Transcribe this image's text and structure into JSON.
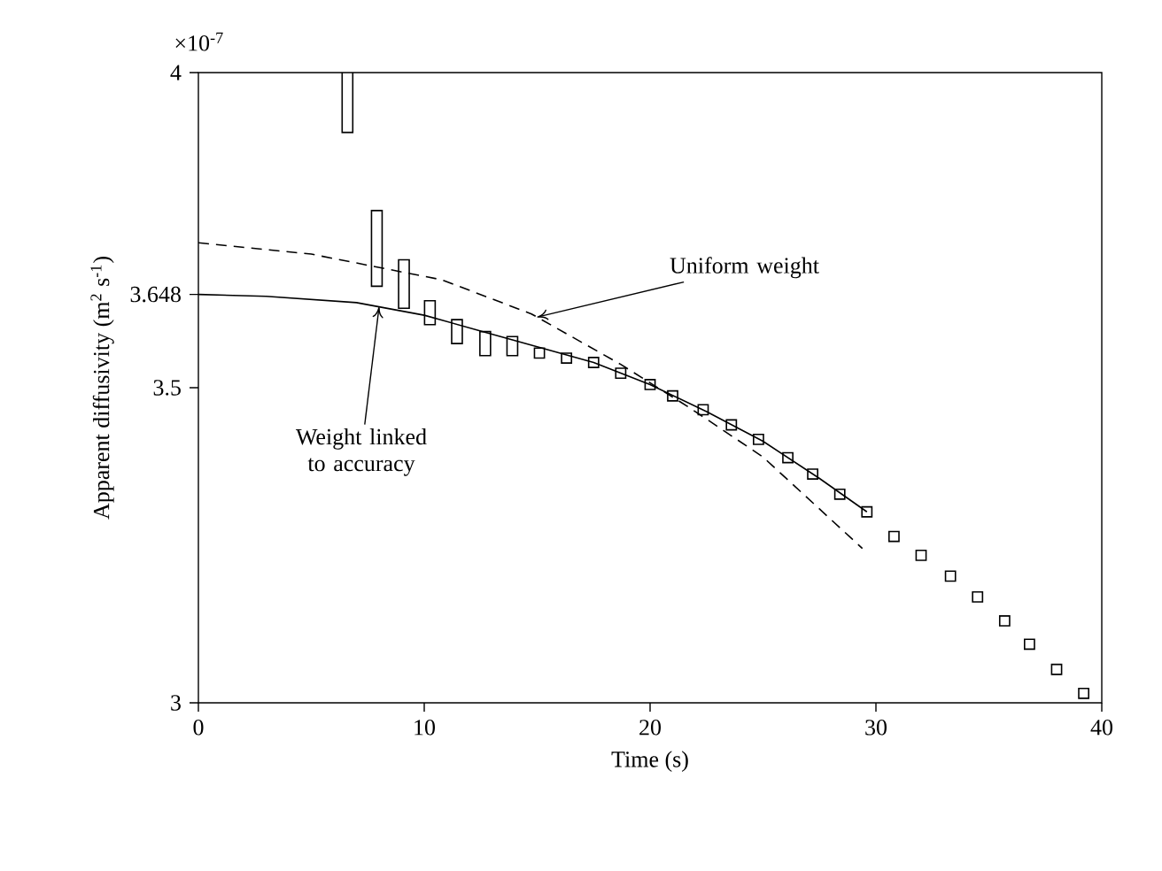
{
  "chart_data": {
    "type": "scatter",
    "xlabel": "Time (s)",
    "ylabel": "Apparent diffusivity (m$^{2}$ s$^{-1}$)",
    "xlim": [
      0,
      40
    ],
    "ylim": [
      3,
      4
    ],
    "xticks": [
      0,
      10,
      20,
      30,
      40
    ],
    "yticks": [
      3,
      3.5,
      3.648,
      4
    ],
    "annotations": [
      "×10$^{-7}$",
      {
        "text": "Uniform weight",
        "x": 15,
        "y": 3.612
      },
      {
        "text": "Weight linked to accuracy",
        "x": 8,
        "y": 3.628
      }
    ],
    "series": [
      {
        "type": "bar",
        "color": "#ffffff",
        "x": [
          6.6,
          7.9,
          9.1,
          10.25,
          11.45,
          12.7,
          13.9
        ],
        "base": [
          3.905,
          3.661,
          3.626,
          3.6,
          3.57,
          3.551,
          3.551
        ],
        "values": [
          0.095,
          0.12,
          0.077,
          0.038,
          0.038,
          0.038,
          0.03
        ]
      },
      {
        "color": "#000000",
        "marker": "square",
        "x": [
          15.1,
          16.3,
          17.5,
          18.7,
          20.0,
          21.0,
          22.35,
          23.6,
          24.8,
          26.1,
          27.2,
          28.4,
          29.6,
          30.8,
          32.0,
          33.3,
          34.5,
          35.7,
          36.8,
          38.0,
          39.2
        ],
        "values": [
          3.555,
          3.547,
          3.54,
          3.523,
          3.505,
          3.487,
          3.465,
          3.441,
          3.418,
          3.389,
          3.363,
          3.331,
          3.303,
          3.264,
          3.234,
          3.201,
          3.168,
          3.13,
          3.093,
          3.053,
          3.015
        ]
      },
      {
        "type": "line",
        "color": "#000000",
        "marker": "none",
        "line_style": "solid",
        "x": [
          0,
          3,
          7,
          10,
          12.5,
          15,
          17.5,
          20,
          22.5,
          25,
          27.5,
          29.6
        ],
        "values": [
          3.648,
          3.645,
          3.635,
          3.615,
          3.59,
          3.565,
          3.54,
          3.505,
          3.462,
          3.415,
          3.356,
          3.303
        ]
      },
      {
        "type": "line",
        "color": "#000000",
        "marker": "none",
        "line_style": "dashed",
        "x": [
          0,
          5,
          10.8,
          14.75,
          18.7,
          21.8,
          25,
          29.4
        ],
        "values": [
          3.73,
          3.712,
          3.671,
          3.617,
          3.537,
          3.467,
          3.39,
          3.245
        ]
      }
    ]
  }
}
